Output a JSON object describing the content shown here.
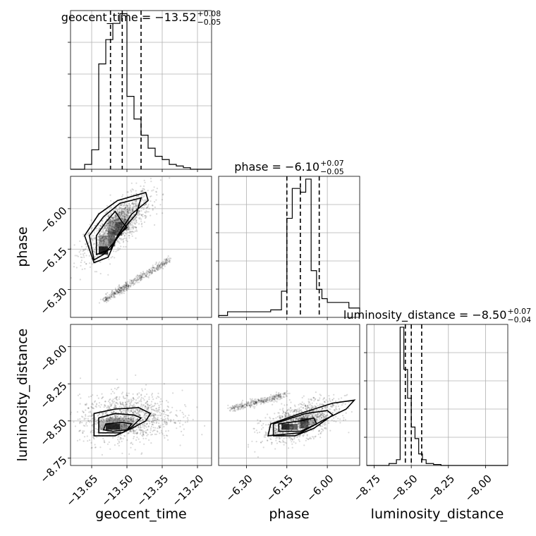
{
  "chart_data": {
    "type": "corner",
    "parameters": [
      "geocent_time",
      "phase",
      "luminosity_distance"
    ],
    "titles": [
      {
        "param": "geocent_time",
        "text": "geocent_time = −13.52",
        "sup": "+0.08",
        "sub": "−0.05"
      },
      {
        "param": "phase",
        "text": "phase = −6.10",
        "sup": "+0.07",
        "sub": "−0.05"
      },
      {
        "param": "luminosity_distance",
        "text": "luminosity_distance = −8.50",
        "sup": "+0.07",
        "sub": "−0.04"
      }
    ],
    "axes": {
      "geocent_time": {
        "range": [
          -13.74,
          -13.14
        ],
        "ticks": [
          -13.65,
          -13.5,
          -13.35,
          -13.2
        ],
        "tick_labels": [
          "−13.65",
          "−13.50",
          "−13.35",
          "−13.20"
        ]
      },
      "phase": {
        "range": [
          -6.403,
          -5.88
        ],
        "ticks": [
          -6.3,
          -6.15,
          -6.0
        ],
        "tick_labels": [
          "−6.30",
          "−6.15",
          "−6.00"
        ]
      },
      "luminosity_distance": {
        "range": [
          -8.8,
          -7.85
        ],
        "ticks": [
          -8.75,
          -8.5,
          -8.25,
          -8.0
        ],
        "tick_labels": [
          "−8.75",
          "−8.50",
          "−8.25",
          "−8.00"
        ]
      }
    },
    "histograms": {
      "geocent_time": {
        "edges": [
          -13.74,
          -13.71,
          -13.68,
          -13.65,
          -13.62,
          -13.59,
          -13.56,
          -13.53,
          -13.5,
          -13.47,
          -13.44,
          -13.41,
          -13.38,
          -13.35,
          -13.32,
          -13.29,
          -13.26,
          -13.23,
          -13.2,
          -13.17,
          -13.14
        ],
        "counts": [
          0,
          0,
          3,
          12,
          65,
          80,
          90,
          96,
          45,
          31,
          21,
          13,
          8,
          6,
          3,
          2,
          1,
          0,
          0,
          0
        ],
        "quantiles": [
          -13.57,
          -13.52,
          -13.44
        ]
      },
      "phase": {
        "edges": [
          -6.403,
          -6.37,
          -6.33,
          -6.29,
          -6.25,
          -6.21,
          -6.17,
          -6.15,
          -6.13,
          -6.1,
          -6.08,
          -6.06,
          -6.04,
          -6.02,
          -6.0,
          -5.96,
          -5.92,
          -5.88
        ],
        "counts": [
          1,
          3,
          3,
          3,
          3,
          4,
          14,
          53,
          69,
          67,
          74,
          25,
          15,
          10,
          8,
          8,
          5
        ],
        "quantiles": [
          -6.15,
          -6.1,
          -6.03
        ]
      },
      "luminosity_distance": {
        "edges": [
          -8.8,
          -8.75,
          -8.7,
          -8.65,
          -8.6,
          -8.575,
          -8.55,
          -8.525,
          -8.5,
          -8.475,
          -8.45,
          -8.425,
          -8.4,
          -8.35,
          -8.3,
          -8.25,
          -8.2,
          -8.15,
          -8.1,
          -8.0,
          -7.9,
          -7.85
        ],
        "counts": [
          0,
          0,
          0,
          1,
          3,
          72,
          50,
          35,
          20,
          14,
          6,
          3,
          1,
          0.5,
          0,
          0,
          0,
          0,
          0,
          0,
          0
        ],
        "quantiles": [
          -8.54,
          -8.5,
          -8.43
        ]
      }
    },
    "grid": true,
    "color": "#000000"
  }
}
